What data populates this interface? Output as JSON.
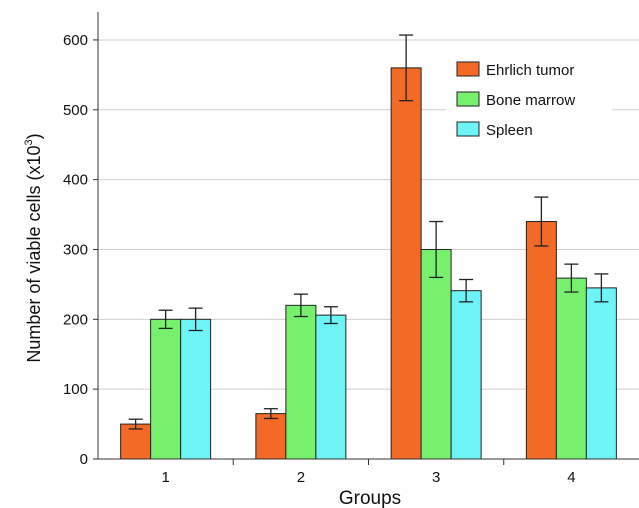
{
  "chart_data": {
    "type": "bar",
    "xlabel": "Groups",
    "ylabel_main": "Number of viable cells (x10",
    "ylabel_sup": "3",
    "ylabel_close": ")",
    "categories": [
      "1",
      "2",
      "3",
      "4"
    ],
    "ylim": [
      0,
      640
    ],
    "yticks": [
      0,
      100,
      200,
      300,
      400,
      500,
      600
    ],
    "grid": true,
    "legend_position": "top-right",
    "series": [
      {
        "name": "Ehrlich tumor",
        "color": "#f26a26",
        "values": [
          50,
          65,
          560,
          340
        ],
        "errors": [
          7,
          7,
          47,
          35
        ]
      },
      {
        "name": "Bone marrow",
        "color": "#77f06d",
        "values": [
          200,
          220,
          300,
          259
        ],
        "errors": [
          13,
          16,
          40,
          20
        ]
      },
      {
        "name": "Spleen",
        "color": "#6ef3f7",
        "values": [
          200,
          206,
          241,
          245
        ],
        "errors": [
          16,
          12,
          16,
          20
        ]
      }
    ]
  }
}
